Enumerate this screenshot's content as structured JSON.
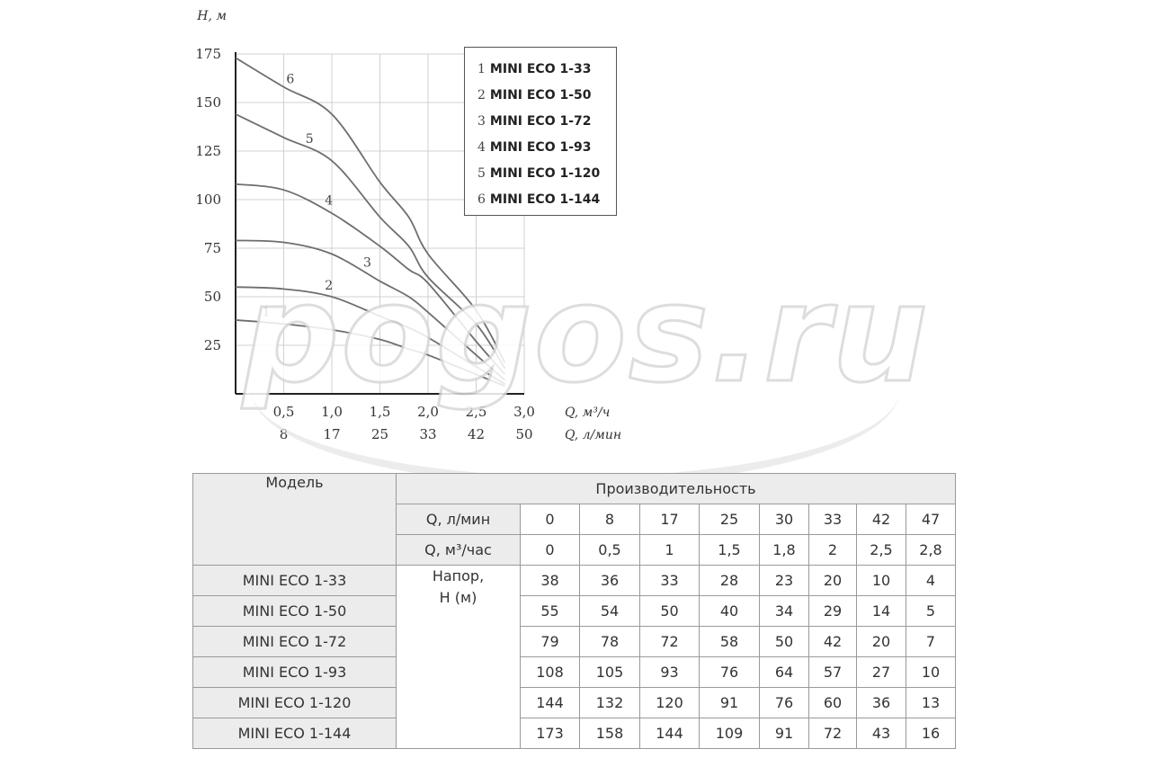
{
  "chart_data": {
    "type": "line",
    "ylabel": "H, м",
    "xlabel_m3h": "Q, м³/ч",
    "xlabel_lmin": "Q, л/мин",
    "yticks": [
      "25",
      "50",
      "75",
      "100",
      "125",
      "150",
      "175"
    ],
    "xticks_m3h": [
      "0,5",
      "1,0",
      "1,5",
      "2,0",
      "2,5",
      "3,0"
    ],
    "xticks_lmin": [
      "8",
      "17",
      "25",
      "33",
      "42",
      "50"
    ],
    "ylim": [
      0,
      175
    ],
    "xlim": [
      0,
      3.0
    ],
    "grid": true,
    "legend_position": "top-right",
    "x": [
      0,
      0.5,
      1,
      1.5,
      1.8,
      2,
      2.5,
      2.8
    ],
    "series": [
      {
        "num": "1",
        "name": "MINI ECO 1-33",
        "values": [
          38,
          36,
          33,
          28,
          23,
          20,
          10,
          4
        ]
      },
      {
        "num": "2",
        "name": "MINI ECO 1-50",
        "values": [
          55,
          54,
          50,
          40,
          34,
          29,
          14,
          5
        ]
      },
      {
        "num": "3",
        "name": "MINI ECO 1-72",
        "values": [
          79,
          78,
          72,
          58,
          50,
          42,
          20,
          7
        ]
      },
      {
        "num": "4",
        "name": "MINI ECO 1-93",
        "values": [
          108,
          105,
          93,
          76,
          64,
          57,
          27,
          10
        ]
      },
      {
        "num": "5",
        "name": "MINI ECO 1-120",
        "values": [
          144,
          132,
          120,
          91,
          76,
          60,
          36,
          13
        ]
      },
      {
        "num": "6",
        "name": "MINI ECO 1-144",
        "values": [
          173,
          158,
          144,
          109,
          91,
          72,
          43,
          16
        ]
      }
    ]
  },
  "watermark": "pogos.ru",
  "table": {
    "model_header": "Модель",
    "perf_header": "Производительность",
    "q_lmin_label": "Q, л/мин",
    "q_m3h_label": "Q, м³/час",
    "q_lmin": [
      "0",
      "8",
      "17",
      "25",
      "30",
      "33",
      "42",
      "47"
    ],
    "q_m3h": [
      "0",
      "0,5",
      "1",
      "1,5",
      "1,8",
      "2",
      "2,5",
      "2,8"
    ],
    "napor_line1": "Напор,",
    "napor_line2": "H (м)",
    "rows": [
      {
        "model": "MINI ECO 1-33",
        "values": [
          "38",
          "36",
          "33",
          "28",
          "23",
          "20",
          "10",
          "4"
        ]
      },
      {
        "model": "MINI ECO 1-50",
        "values": [
          "55",
          "54",
          "50",
          "40",
          "34",
          "29",
          "14",
          "5"
        ]
      },
      {
        "model": "MINI ECO 1-72",
        "values": [
          "79",
          "78",
          "72",
          "58",
          "50",
          "42",
          "20",
          "7"
        ]
      },
      {
        "model": "MINI ECO 1-93",
        "values": [
          "108",
          "105",
          "93",
          "76",
          "64",
          "57",
          "27",
          "10"
        ]
      },
      {
        "model": "MINI ECO 1-120",
        "values": [
          "144",
          "132",
          "120",
          "91",
          "76",
          "60",
          "36",
          "13"
        ]
      },
      {
        "model": "MINI ECO 1-144",
        "values": [
          "173",
          "158",
          "144",
          "109",
          "91",
          "72",
          "43",
          "16"
        ]
      }
    ]
  }
}
